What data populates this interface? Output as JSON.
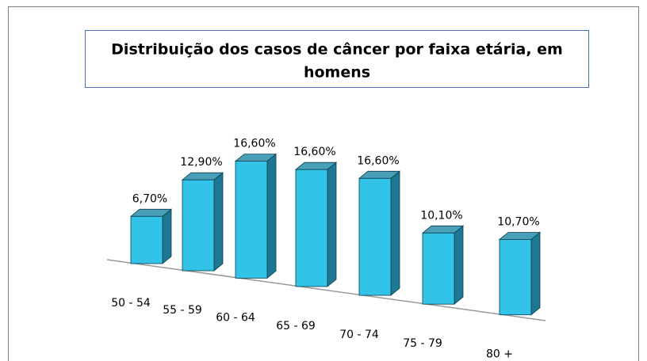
{
  "chart_data": {
    "type": "bar3d",
    "title": [
      "Distribuição dos casos de câncer por faixa etária, em",
      "homens"
    ],
    "categories": [
      "50 - 54",
      "55 - 59",
      "60 - 64",
      "65 - 69",
      "70 - 74",
      "75 - 79",
      "80 +"
    ],
    "values": [
      6.7,
      12.9,
      16.6,
      16.6,
      16.6,
      10.1,
      10.7
    ],
    "value_labels": [
      "6,70%",
      "12,90%",
      "16,60%",
      "16,60%",
      "16,60%",
      "10,10%",
      "10,70%"
    ],
    "color": "#33c3e8"
  }
}
